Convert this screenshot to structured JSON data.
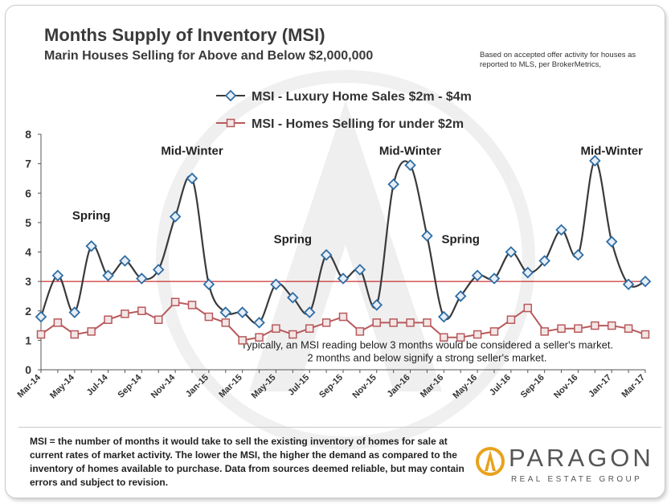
{
  "header": {
    "title": "Months Supply of Inventory (MSI)",
    "subtitle": "Marin Houses Selling for Above and Below $2,000,000",
    "source_note": "Based on accepted offer activity for houses as reported  to MLS, per BrokerMetrics,"
  },
  "footnote": "MSI = the number of months it would take to sell the existing inventory of homes for sale at current rates of market activity.  The lower the MSI, the higher the demand as compared to the inventory of homes available to purchase. Data from sources deemed reliable, but may contain errors and subject to revision.",
  "logo": {
    "name": "PARAGON",
    "tagline": "REAL ESTATE GROUP"
  },
  "colors": {
    "luxury": "#2e6da4",
    "under": "#b8595b",
    "threshold": "#c00000",
    "marker_fill": "#e8eef7"
  },
  "chart_data": {
    "type": "line",
    "title": "Months Supply of Inventory (MSI)",
    "subtitle": "Marin Houses Selling for Above and Below $2,000,000",
    "xlabel": "",
    "ylabel": "",
    "ylim": [
      0,
      8
    ],
    "yticks": [
      0,
      1,
      2,
      3,
      4,
      5,
      6,
      7,
      8
    ],
    "grid": false,
    "legend_position": "top-center",
    "x": [
      "Mar-14",
      "Apr-14",
      "May-14",
      "Jun-14",
      "Jul-14",
      "Aug-14",
      "Sep-14",
      "Oct-14",
      "Nov-14",
      "Dec-14",
      "Jan-15",
      "Feb-15",
      "Mar-15",
      "Apr-15",
      "May-15",
      "Jun-15",
      "Jul-15",
      "Aug-15",
      "Sep-15",
      "Oct-15",
      "Nov-15",
      "Dec-15",
      "Jan-16",
      "Feb-16",
      "Mar-16",
      "Apr-16",
      "May-16",
      "Jun-16",
      "Jul-16",
      "Aug-16",
      "Sep-16",
      "Oct-16",
      "Nov-16",
      "Dec-16",
      "Jan-17",
      "Feb-17",
      "Mar-17"
    ],
    "xtick_labels": [
      "Mar-14",
      "May-14",
      "Jul-14",
      "Sep-14",
      "Nov-14",
      "Jan-15",
      "Mar-15",
      "May-15",
      "Jul-15",
      "Sep-15",
      "Nov-15",
      "Jan-16",
      "Mar-16",
      "May-16",
      "Jul-16",
      "Sep-16",
      "Nov-16",
      "Jan-17",
      "Mar-17"
    ],
    "series": [
      {
        "name": "MSI - Luxury Home Sales $2m - $4m",
        "marker": "diamond",
        "values": [
          1.8,
          3.2,
          1.95,
          4.2,
          3.2,
          3.7,
          3.1,
          3.4,
          5.2,
          6.5,
          2.9,
          1.95,
          1.95,
          1.6,
          2.9,
          2.45,
          1.95,
          3.9,
          3.1,
          3.4,
          2.2,
          6.3,
          6.95,
          4.55,
          1.8,
          2.5,
          3.2,
          3.1,
          4.0,
          3.3,
          3.7,
          4.75,
          3.9,
          7.1,
          4.35,
          2.9,
          3.0
        ]
      },
      {
        "name": "MSI - Homes Selling for under $2m",
        "marker": "square",
        "values": [
          1.2,
          1.6,
          1.2,
          1.3,
          1.7,
          1.9,
          2.0,
          1.7,
          2.3,
          2.2,
          1.8,
          1.6,
          1.0,
          1.1,
          1.4,
          1.2,
          1.4,
          1.6,
          1.8,
          1.3,
          1.6,
          1.6,
          1.6,
          1.6,
          1.1,
          1.1,
          1.2,
          1.3,
          1.7,
          2.1,
          1.3,
          1.4,
          1.4,
          1.5,
          1.5,
          1.4,
          1.2
        ]
      }
    ],
    "reference_line": {
      "y": 3
    },
    "annotations": [
      {
        "text": "Mid-Winter",
        "x": "Dec-14",
        "y": 7.3
      },
      {
        "text": "Mid-Winter",
        "x": "Jan-16",
        "y": 7.3
      },
      {
        "text": "Mid-Winter",
        "x": "Jan-17",
        "y": 7.3
      },
      {
        "text": "Spring",
        "x": "Jun-14",
        "y": 5.1
      },
      {
        "text": "Spring",
        "x": "Jun-15",
        "y": 4.3
      },
      {
        "text": "Spring",
        "x": "Apr-16",
        "y": 4.3
      },
      {
        "text": "Typically, an MSI reading below 3 months would be considered a seller's market.",
        "x": "Feb-16",
        "y": 0.72
      },
      {
        "text": "2 months and below signify a strong seller's market.",
        "x": "Feb-16",
        "y": 0.28
      }
    ]
  }
}
